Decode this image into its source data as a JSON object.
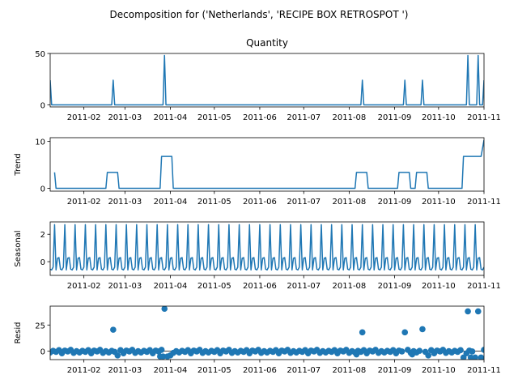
{
  "chart_data": {
    "type": "line",
    "title": "Decomposition for ('Netherlands', 'RECIPE BOX RETROSPOT ')",
    "color": "#1f77b4",
    "x_range": [
      "2011-01-09",
      "2011-11-01"
    ],
    "x_ticks": [
      "2011-02",
      "2011-03",
      "2011-04",
      "2011-05",
      "2011-06",
      "2011-07",
      "2011-08",
      "2011-09",
      "2011-10",
      "2011-11"
    ],
    "panels": [
      {
        "key": "observed",
        "title": "Quantity",
        "ylabel": "",
        "kind": "line",
        "ylim": [
          -2,
          50
        ],
        "yticks": [
          "0",
          "50"
        ],
        "ytick_values": [
          0,
          50
        ],
        "baseline": 0,
        "spikes": [
          {
            "date": "2011-01-09",
            "value": 24
          },
          {
            "date": "2011-02-21",
            "value": 24
          },
          {
            "date": "2011-03-28",
            "value": 48
          },
          {
            "date": "2011-08-10",
            "value": 24
          },
          {
            "date": "2011-09-08",
            "value": 24
          },
          {
            "date": "2011-09-20",
            "value": 24
          },
          {
            "date": "2011-10-21",
            "value": 48
          },
          {
            "date": "2011-10-28",
            "value": 48
          },
          {
            "date": "2011-11-01",
            "value": 24
          }
        ]
      },
      {
        "key": "trend",
        "title": "",
        "ylabel": "Trend",
        "kind": "line",
        "ylim": [
          -0.6,
          10.8
        ],
        "yticks": [
          "0",
          "10"
        ],
        "ytick_values": [
          0,
          10
        ],
        "points": [
          [
            "2011-01-12",
            3.4
          ],
          [
            "2011-01-13",
            0
          ],
          [
            "2011-02-16",
            0
          ],
          [
            "2011-02-17",
            3.4
          ],
          [
            "2011-02-24",
            3.4
          ],
          [
            "2011-02-25",
            0
          ],
          [
            "2011-03-25",
            0
          ],
          [
            "2011-03-26",
            6.8
          ],
          [
            "2011-04-02",
            6.8
          ],
          [
            "2011-04-03",
            0
          ],
          [
            "2011-08-05",
            0
          ],
          [
            "2011-08-06",
            3.4
          ],
          [
            "2011-08-13",
            3.4
          ],
          [
            "2011-08-14",
            0
          ],
          [
            "2011-09-03",
            0
          ],
          [
            "2011-09-04",
            3.4
          ],
          [
            "2011-09-11",
            3.4
          ],
          [
            "2011-09-12",
            0
          ],
          [
            "2011-09-15",
            0
          ],
          [
            "2011-09-16",
            3.4
          ],
          [
            "2011-09-23",
            3.4
          ],
          [
            "2011-09-24",
            0
          ],
          [
            "2011-10-17",
            0
          ],
          [
            "2011-10-18",
            6.8
          ],
          [
            "2011-10-30",
            6.8
          ],
          [
            "2011-11-01",
            10.3
          ]
        ]
      },
      {
        "key": "seasonal",
        "title": "",
        "ylabel": "Seasonal",
        "kind": "line",
        "ylim": [
          -1.0,
          2.9
        ],
        "yticks": [
          "0",
          "2"
        ],
        "ytick_values": [
          0,
          2
        ],
        "period_days": 7,
        "cycle": [
          -0.55,
          -0.6,
          -0.4,
          2.7,
          -0.6,
          0.25,
          0.3
        ]
      },
      {
        "key": "resid",
        "title": "",
        "ylabel": "Resid",
        "kind": "scatter",
        "ylim": [
          -8,
          43
        ],
        "yticks": [
          "0",
          "25"
        ],
        "ytick_values": [
          0,
          25
        ],
        "outliers": [
          {
            "date": "2011-02-21",
            "value": 20.5
          },
          {
            "date": "2011-03-28",
            "value": 40.5
          },
          {
            "date": "2011-08-10",
            "value": 18
          },
          {
            "date": "2011-09-08",
            "value": 18
          },
          {
            "date": "2011-09-20",
            "value": 21
          },
          {
            "date": "2011-10-21",
            "value": 38
          },
          {
            "date": "2011-10-28",
            "value": 38
          }
        ],
        "dips": [
          {
            "date": "2011-02-24",
            "value": -4
          },
          {
            "date": "2011-03-25",
            "value": -5
          },
          {
            "date": "2011-03-27",
            "value": -5
          },
          {
            "date": "2011-03-30",
            "value": -5
          },
          {
            "date": "2011-04-01",
            "value": -4
          },
          {
            "date": "2011-08-06",
            "value": -3
          },
          {
            "date": "2011-09-13",
            "value": -3
          },
          {
            "date": "2011-09-24",
            "value": -4
          },
          {
            "date": "2011-10-18",
            "value": -6
          },
          {
            "date": "2011-10-23",
            "value": -6
          },
          {
            "date": "2011-10-26",
            "value": -6
          },
          {
            "date": "2011-10-30",
            "value": -6
          }
        ]
      }
    ]
  }
}
